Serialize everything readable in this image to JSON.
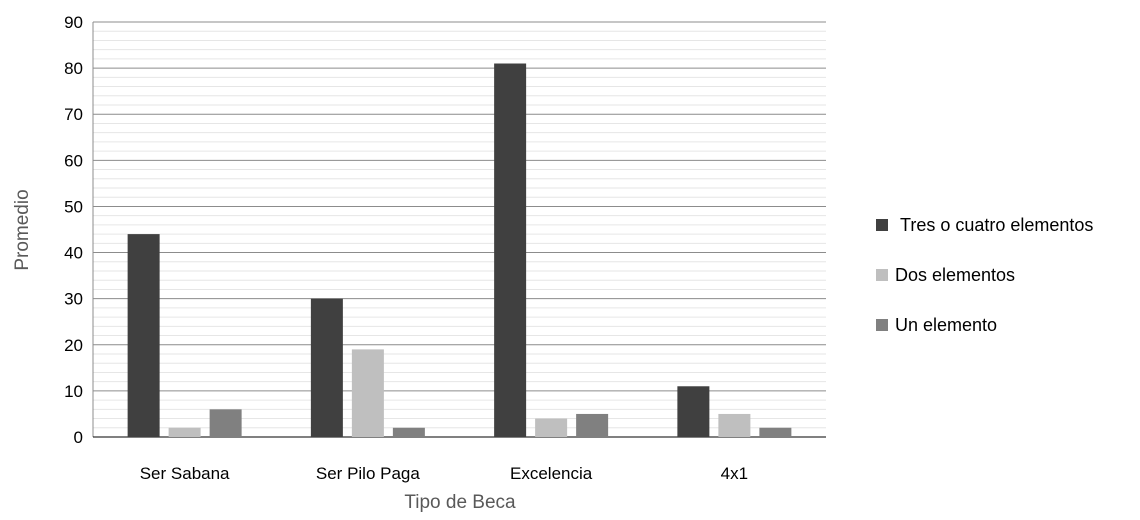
{
  "chart_data": {
    "type": "bar",
    "title": "",
    "xlabel": "Tipo de Beca",
    "ylabel": "Promedio",
    "categories": [
      "Ser Sabana",
      "Ser Pilo Paga",
      "Excelencia",
      "4x1"
    ],
    "series": [
      {
        "name": "Tres o cuatro elementos",
        "values": [
          44,
          30,
          81,
          11
        ],
        "color": "#404040"
      },
      {
        "name": "Dos elementos",
        "values": [
          2,
          19,
          4,
          5
        ],
        "color": "#bfbfbf"
      },
      {
        "name": "Un elemento",
        "values": [
          6,
          2,
          5,
          2
        ],
        "color": "#808080"
      }
    ],
    "ylim": [
      0,
      90
    ],
    "yticks": [
      0,
      10,
      20,
      30,
      40,
      50,
      60,
      70,
      80,
      90
    ],
    "grid": true,
    "legend": "right"
  }
}
